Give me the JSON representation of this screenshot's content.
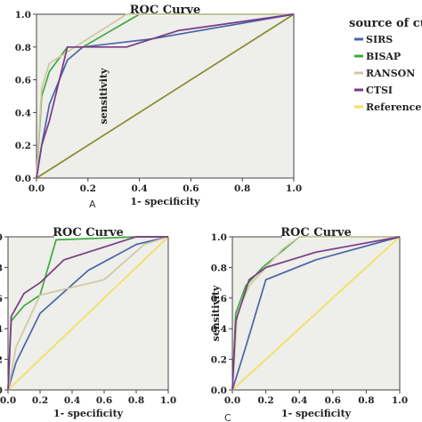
{
  "legend": {
    "title": "source of cu",
    "items": [
      {
        "label": "SIRS",
        "color": "#4a64a8"
      },
      {
        "label": "BISAP",
        "color": "#3cab3c"
      },
      {
        "label": "RANSON",
        "color": "#cfc8a0"
      },
      {
        "label": "CTSI",
        "color": "#7a3a86"
      },
      {
        "label": "Reference l",
        "color": "#f0e25a"
      }
    ]
  },
  "panel_letters": [
    "A",
    "",
    "C"
  ],
  "chart_data": [
    {
      "type": "line",
      "title": "ROC Curve",
      "xlabel": "1- specificity",
      "ylabel": "sensitivity",
      "xlim": [
        0,
        1
      ],
      "ylim": [
        0,
        1
      ],
      "ticks": [
        "0.0",
        "0.2",
        "0.4",
        "0.6",
        "0.8",
        "1.0"
      ],
      "grid": false,
      "series": [
        {
          "name": "SIRS",
          "color": "#4a64a8",
          "x": [
            0,
            0.02,
            0.05,
            0.12,
            0.18,
            0.45,
            1.0
          ],
          "y": [
            0,
            0.2,
            0.45,
            0.72,
            0.8,
            0.85,
            1.0
          ]
        },
        {
          "name": "BISAP",
          "color": "#3cab3c",
          "x": [
            0,
            0.02,
            0.05,
            0.12,
            0.18,
            0.4,
            1.0
          ],
          "y": [
            0,
            0.5,
            0.65,
            0.8,
            0.8,
            1.0,
            1.0
          ]
        },
        {
          "name": "RANSON",
          "color": "#cfc8a0",
          "x": [
            0,
            0.02,
            0.05,
            0.1,
            0.2,
            0.35,
            1.0
          ],
          "y": [
            0,
            0.55,
            0.7,
            0.75,
            0.85,
            1.0,
            1.0
          ]
        },
        {
          "name": "CTSI",
          "color": "#7a3a86",
          "x": [
            0,
            0.02,
            0.05,
            0.12,
            0.35,
            0.55,
            1.0
          ],
          "y": [
            0,
            0.2,
            0.35,
            0.8,
            0.8,
            0.9,
            1.0
          ]
        },
        {
          "name": "Reference l",
          "color": "#8a8a30",
          "x": [
            0,
            1
          ],
          "y": [
            0,
            1
          ]
        }
      ]
    },
    {
      "type": "line",
      "title": "ROC Curve",
      "xlabel": "1- specificity",
      "ylabel": "",
      "xlim": [
        0,
        1
      ],
      "ylim": [
        0,
        1
      ],
      "ticks": [
        "0.0",
        "0.2",
        "0.4",
        "0.6",
        "0.8",
        "1.0"
      ],
      "grid": false,
      "series": [
        {
          "name": "SIRS",
          "color": "#4a64a8",
          "x": [
            0,
            0.05,
            0.2,
            0.5,
            0.8,
            1.0
          ],
          "y": [
            0,
            0.18,
            0.5,
            0.78,
            0.95,
            1.0
          ]
        },
        {
          "name": "BISAP",
          "color": "#3cab3c",
          "x": [
            0,
            0.02,
            0.1,
            0.2,
            0.3,
            0.8,
            1.0
          ],
          "y": [
            0,
            0.45,
            0.55,
            0.62,
            0.98,
            1.0,
            1.0
          ]
        },
        {
          "name": "RANSON",
          "color": "#cfc8a0",
          "x": [
            0,
            0.05,
            0.2,
            0.6,
            0.85,
            1.0
          ],
          "y": [
            0,
            0.28,
            0.62,
            0.72,
            0.95,
            1.0
          ]
        },
        {
          "name": "CTSI",
          "color": "#7a3a86",
          "x": [
            0,
            0.02,
            0.1,
            0.2,
            0.35,
            0.8,
            1.0
          ],
          "y": [
            0,
            0.48,
            0.63,
            0.7,
            0.85,
            1.0,
            1.0
          ]
        },
        {
          "name": "Reference l",
          "color": "#f0e25a",
          "x": [
            0,
            1
          ],
          "y": [
            0,
            1
          ]
        }
      ]
    },
    {
      "type": "line",
      "title": "ROC Curve",
      "xlabel": "1- specificity",
      "ylabel": "sensitivity",
      "xlim": [
        0,
        1
      ],
      "ylim": [
        0,
        1
      ],
      "ticks": [
        "0.0",
        "0.2",
        "0.4",
        "0.6",
        "0.8",
        "1.0"
      ],
      "grid": false,
      "series": [
        {
          "name": "SIRS",
          "color": "#4a64a8",
          "x": [
            0,
            0.08,
            0.2,
            0.5,
            1.0
          ],
          "y": [
            0,
            0.28,
            0.72,
            0.85,
            1.0
          ]
        },
        {
          "name": "BISAP",
          "color": "#3cab3c",
          "x": [
            0,
            0.02,
            0.08,
            0.18,
            0.4,
            1.0
          ],
          "y": [
            0,
            0.5,
            0.68,
            0.8,
            1.0,
            1.0
          ]
        },
        {
          "name": "RANSON",
          "color": "#cfc8a0",
          "x": [
            0,
            0.03,
            0.1,
            0.2,
            0.3,
            0.4,
            1.0
          ],
          "y": [
            0,
            0.5,
            0.68,
            0.8,
            0.92,
            1.0,
            1.0
          ]
        },
        {
          "name": "CTSI",
          "color": "#7a3a86",
          "x": [
            0,
            0.02,
            0.1,
            0.2,
            0.5,
            1.0
          ],
          "y": [
            0,
            0.45,
            0.72,
            0.8,
            0.9,
            1.0
          ]
        },
        {
          "name": "Reference l",
          "color": "#f0e25a",
          "x": [
            0,
            1
          ],
          "y": [
            0,
            1
          ]
        }
      ]
    }
  ]
}
